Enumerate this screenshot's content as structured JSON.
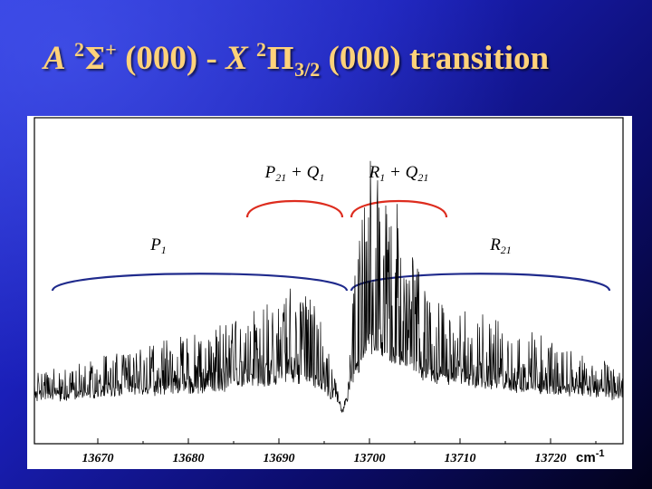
{
  "slide": {
    "title_parts": {
      "upper_term": "A",
      "upper_multiplicity": "2",
      "upper_symbol": "Σ",
      "upper_parity": "+",
      "upper_vib": "(000)",
      "dash": "-",
      "lower_term": "X",
      "lower_multiplicity": "2",
      "lower_symbol": "Π",
      "lower_omega": "3/2",
      "lower_vib": "(000)",
      "word": "transition"
    },
    "colors": {
      "title": "#ffd27a",
      "background_start": "#2a35d8",
      "background_end": "#02021a"
    }
  },
  "chart_data": {
    "type": "line",
    "title": "",
    "xlabel": "",
    "x_unit": "cm-1",
    "ylabel": "",
    "xlim": [
      13663,
      13728
    ],
    "x_ticks": [
      13670,
      13680,
      13690,
      13700,
      13710,
      13720
    ],
    "y_ticks_shown": false,
    "grid": false,
    "series": [
      {
        "color": "#000000",
        "envelope_x": [
          13663,
          13672,
          13682,
          13687,
          13690,
          13693,
          13695,
          13696.5,
          13697,
          13697.5,
          13698.5,
          13700,
          13701.5,
          13703,
          13706,
          13710,
          13716,
          13720,
          13725,
          13728
        ],
        "envelope_y": [
          0.12,
          0.2,
          0.28,
          0.36,
          0.44,
          0.46,
          0.28,
          0.06,
          -0.12,
          0.1,
          0.55,
          0.98,
          0.93,
          0.78,
          0.5,
          0.4,
          0.3,
          0.25,
          0.18,
          0.14
        ]
      }
    ],
    "annotations": [
      {
        "label_main": "P",
        "label_sub": "21",
        "label_plus": "+",
        "label2_main": "Q",
        "label2_sub": "1",
        "bracket_color": "#dd2c1e",
        "x_from": 13686.5,
        "x_to": 13697
      },
      {
        "label_main": "R",
        "label_sub": "1",
        "label_plus": "+",
        "label2_main": "Q",
        "label2_sub": "21",
        "bracket_color": "#dd2c1e",
        "x_from": 13698,
        "x_to": 13708.5
      },
      {
        "label_main": "P",
        "label_sub": "1",
        "bracket_color": "#1f2a8c",
        "x_from": 13665,
        "x_to": 13697.5
      },
      {
        "label_main": "R",
        "label_sub": "21",
        "bracket_color": "#1f2a8c",
        "x_from": 13698,
        "x_to": 13726.5
      }
    ]
  }
}
